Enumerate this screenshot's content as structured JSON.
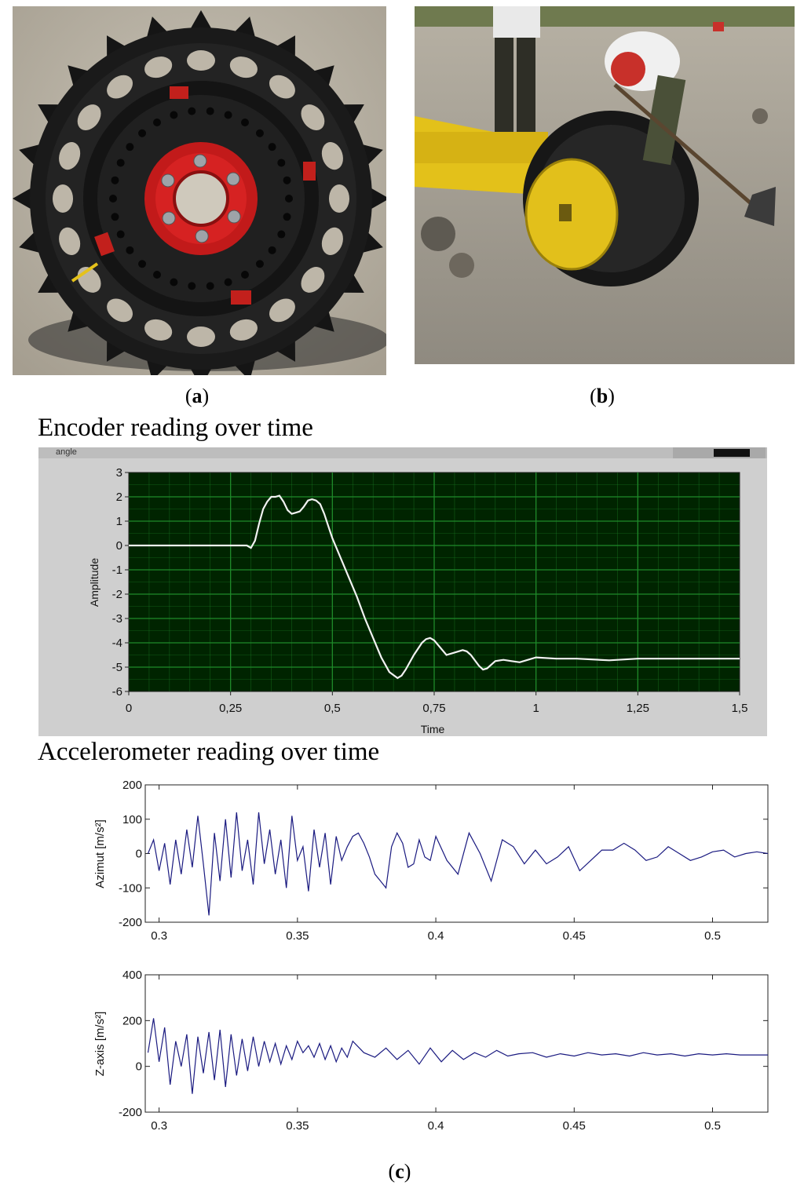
{
  "figure": {
    "panel_a_label": "a",
    "panel_b_label": "b",
    "panel_c_label": "c",
    "encoder_heading": "Encoder reading over time",
    "accel_heading": "Accelerometer reading over time"
  },
  "photos": {
    "a": {
      "subject": "black-sprocket-wheel-with-red-hub"
    },
    "b": {
      "subject": "field-test-wheel-on-yellow-frame"
    }
  },
  "chart_data": [
    {
      "type": "line",
      "window_title": "angle",
      "xlabel": "Time",
      "ylabel": "Amplitude",
      "xlim": [
        0,
        1.5
      ],
      "ylim": [
        -6,
        3
      ],
      "xticks": [
        "0",
        "0,25",
        "0,5",
        "0,75",
        "1",
        "1,25",
        "1,5"
      ],
      "yticks": [
        "3",
        "2",
        "1",
        "0",
        "-1",
        "-2",
        "-3",
        "-4",
        "-5",
        "-6"
      ],
      "grid": true,
      "background": "#002400",
      "grid_color": "#1f8a2a",
      "line_color": "#f2f2f2",
      "series": [
        {
          "x": [
            0,
            0.29,
            0.3,
            0.31,
            0.32,
            0.33,
            0.34,
            0.35,
            0.36,
            0.37,
            0.38,
            0.39,
            0.4,
            0.41,
            0.42,
            0.43,
            0.44,
            0.45,
            0.46,
            0.47,
            0.48,
            0.49,
            0.5,
            0.52,
            0.54,
            0.56,
            0.58,
            0.6,
            0.62,
            0.64,
            0.66,
            0.67,
            0.68,
            0.7,
            0.72,
            0.73,
            0.74,
            0.75,
            0.76,
            0.78,
            0.8,
            0.82,
            0.83,
            0.84,
            0.86,
            0.87,
            0.88,
            0.9,
            0.92,
            0.94,
            0.96,
            0.98,
            1.0,
            1.05,
            1.1,
            1.18,
            1.25,
            1.5
          ],
          "y": [
            0,
            0,
            -0.1,
            0.2,
            0.9,
            1.5,
            1.8,
            2.0,
            2.0,
            2.05,
            1.8,
            1.45,
            1.3,
            1.35,
            1.4,
            1.6,
            1.85,
            1.9,
            1.85,
            1.7,
            1.3,
            0.8,
            0.3,
            -0.5,
            -1.3,
            -2.1,
            -3.0,
            -3.8,
            -4.6,
            -5.2,
            -5.45,
            -5.35,
            -5.1,
            -4.5,
            -4.0,
            -3.85,
            -3.8,
            -3.9,
            -4.1,
            -4.5,
            -4.4,
            -4.3,
            -4.35,
            -4.5,
            -4.95,
            -5.1,
            -5.05,
            -4.75,
            -4.7,
            -4.75,
            -4.8,
            -4.7,
            -4.6,
            -4.65,
            -4.65,
            -4.72,
            -4.65,
            -4.65
          ]
        }
      ]
    },
    {
      "type": "line",
      "ylabel": "Azimut [m/s²]",
      "xlim": [
        0.295,
        0.52
      ],
      "ylim": [
        -200,
        200
      ],
      "xticks": [
        "0.3",
        "0.35",
        "0.4",
        "0.45",
        "0.5"
      ],
      "yticks": [
        "200",
        "100",
        "0",
        "-100",
        "-200"
      ],
      "grid": false,
      "line_color": "#1a1a80",
      "series": [
        {
          "x": [
            0.296,
            0.298,
            0.3,
            0.302,
            0.304,
            0.306,
            0.308,
            0.31,
            0.312,
            0.314,
            0.316,
            0.318,
            0.32,
            0.322,
            0.324,
            0.326,
            0.328,
            0.33,
            0.332,
            0.334,
            0.336,
            0.338,
            0.34,
            0.342,
            0.344,
            0.346,
            0.348,
            0.35,
            0.352,
            0.354,
            0.356,
            0.358,
            0.36,
            0.362,
            0.364,
            0.366,
            0.368,
            0.37,
            0.372,
            0.374,
            0.376,
            0.378,
            0.38,
            0.382,
            0.384,
            0.386,
            0.388,
            0.39,
            0.392,
            0.394,
            0.396,
            0.398,
            0.4,
            0.404,
            0.408,
            0.412,
            0.416,
            0.42,
            0.424,
            0.428,
            0.432,
            0.436,
            0.44,
            0.444,
            0.448,
            0.452,
            0.456,
            0.46,
            0.464,
            0.468,
            0.472,
            0.476,
            0.48,
            0.484,
            0.488,
            0.492,
            0.496,
            0.5,
            0.504,
            0.508,
            0.512,
            0.516,
            0.52
          ],
          "y": [
            0,
            40,
            -50,
            30,
            -90,
            40,
            -60,
            70,
            -40,
            110,
            -30,
            -180,
            60,
            -80,
            100,
            -70,
            120,
            -50,
            40,
            -90,
            120,
            -30,
            70,
            -60,
            40,
            -100,
            110,
            -20,
            20,
            -110,
            70,
            -40,
            60,
            -90,
            50,
            -20,
            20,
            50,
            60,
            30,
            -10,
            -60,
            -80,
            -100,
            20,
            60,
            30,
            -40,
            -30,
            40,
            -10,
            -20,
            50,
            -20,
            -60,
            60,
            0,
            -80,
            40,
            20,
            -30,
            10,
            -30,
            -10,
            20,
            -50,
            -20,
            10,
            10,
            30,
            10,
            -20,
            -10,
            20,
            0,
            -20,
            -10,
            5,
            10,
            -10,
            0,
            5,
            0
          ]
        }
      ]
    },
    {
      "type": "line",
      "ylabel": "Z-axis [m/s²]",
      "xlim": [
        0.295,
        0.52
      ],
      "ylim": [
        -200,
        400
      ],
      "xticks": [
        "0.3",
        "0.35",
        "0.4",
        "0.45",
        "0.5"
      ],
      "yticks": [
        "400",
        "200",
        "0",
        "-200"
      ],
      "grid": false,
      "line_color": "#1a1a80",
      "series": [
        {
          "x": [
            0.296,
            0.298,
            0.3,
            0.302,
            0.304,
            0.306,
            0.308,
            0.31,
            0.312,
            0.314,
            0.316,
            0.318,
            0.32,
            0.322,
            0.324,
            0.326,
            0.328,
            0.33,
            0.332,
            0.334,
            0.336,
            0.338,
            0.34,
            0.342,
            0.344,
            0.346,
            0.348,
            0.35,
            0.352,
            0.354,
            0.356,
            0.358,
            0.36,
            0.362,
            0.364,
            0.366,
            0.368,
            0.37,
            0.374,
            0.378,
            0.382,
            0.386,
            0.39,
            0.394,
            0.398,
            0.402,
            0.406,
            0.41,
            0.414,
            0.418,
            0.422,
            0.426,
            0.43,
            0.435,
            0.44,
            0.445,
            0.45,
            0.455,
            0.46,
            0.465,
            0.47,
            0.475,
            0.48,
            0.485,
            0.49,
            0.495,
            0.5,
            0.505,
            0.51,
            0.515,
            0.52
          ],
          "y": [
            60,
            210,
            20,
            170,
            -80,
            110,
            0,
            140,
            -120,
            130,
            -30,
            150,
            -60,
            160,
            -90,
            140,
            -40,
            120,
            -20,
            130,
            0,
            110,
            20,
            100,
            10,
            90,
            30,
            110,
            60,
            90,
            40,
            100,
            30,
            90,
            20,
            80,
            40,
            110,
            60,
            40,
            80,
            30,
            70,
            10,
            80,
            20,
            70,
            30,
            60,
            40,
            70,
            45,
            55,
            60,
            40,
            55,
            45,
            60,
            50,
            55,
            45,
            60,
            50,
            55,
            45,
            55,
            50,
            55,
            50,
            50,
            50
          ]
        }
      ]
    }
  ]
}
